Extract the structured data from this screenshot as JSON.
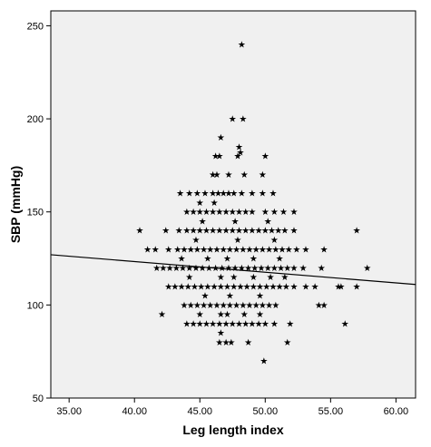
{
  "chart_data": {
    "type": "scatter",
    "title": "",
    "xlabel": "Leg length index",
    "ylabel": "SBP (mmHg)",
    "xlim": [
      33.6,
      61.5
    ],
    "ylim": [
      50,
      258
    ],
    "xticks": [
      35,
      40,
      45,
      50,
      55,
      60
    ],
    "xtick_labels": [
      "35.00",
      "40.00",
      "45.00",
      "50.00",
      "55.00",
      "60.00"
    ],
    "yticks": [
      50,
      100,
      150,
      200,
      250
    ],
    "ytick_labels": [
      "50",
      "100",
      "150",
      "200",
      "250"
    ],
    "grid": false,
    "background_color": "#f0f0f0",
    "marker": "★",
    "marker_color": "#000000",
    "fit_line": {
      "x": [
        33.6,
        61.5
      ],
      "y": [
        127,
        111
      ]
    },
    "series": [
      {
        "points": [
          [
            48.2,
            240
          ],
          [
            47.5,
            200
          ],
          [
            48.3,
            200
          ],
          [
            46.6,
            190
          ],
          [
            48.0,
            185
          ],
          [
            48.1,
            182
          ],
          [
            46.2,
            180
          ],
          [
            46.5,
            180
          ],
          [
            47.9,
            180
          ],
          [
            50.0,
            180
          ],
          [
            46.0,
            170
          ],
          [
            46.3,
            170
          ],
          [
            47.2,
            170
          ],
          [
            48.4,
            170
          ],
          [
            49.8,
            170
          ],
          [
            43.5,
            160
          ],
          [
            44.2,
            160
          ],
          [
            44.8,
            160
          ],
          [
            45.4,
            160
          ],
          [
            46.0,
            160
          ],
          [
            46.4,
            160
          ],
          [
            46.8,
            160
          ],
          [
            47.2,
            160
          ],
          [
            47.6,
            160
          ],
          [
            48.2,
            160
          ],
          [
            49.0,
            160
          ],
          [
            49.8,
            160
          ],
          [
            50.6,
            160
          ],
          [
            45.0,
            155
          ],
          [
            46.1,
            155
          ],
          [
            44.0,
            150
          ],
          [
            44.5,
            150
          ],
          [
            45.0,
            150
          ],
          [
            45.5,
            150
          ],
          [
            46.0,
            150
          ],
          [
            46.5,
            150
          ],
          [
            47.0,
            150
          ],
          [
            47.5,
            150
          ],
          [
            48.0,
            150
          ],
          [
            48.5,
            150
          ],
          [
            49.0,
            150
          ],
          [
            50.0,
            150
          ],
          [
            50.7,
            150
          ],
          [
            51.4,
            150
          ],
          [
            52.2,
            150
          ],
          [
            45.2,
            145
          ],
          [
            47.7,
            145
          ],
          [
            50.2,
            145
          ],
          [
            40.4,
            140
          ],
          [
            42.4,
            140
          ],
          [
            43.4,
            140
          ],
          [
            44.0,
            140
          ],
          [
            44.5,
            140
          ],
          [
            45.0,
            140
          ],
          [
            45.5,
            140
          ],
          [
            46.0,
            140
          ],
          [
            46.5,
            140
          ],
          [
            47.0,
            140
          ],
          [
            47.5,
            140
          ],
          [
            48.0,
            140
          ],
          [
            48.5,
            140
          ],
          [
            49.0,
            140
          ],
          [
            49.5,
            140
          ],
          [
            50.0,
            140
          ],
          [
            50.5,
            140
          ],
          [
            51.0,
            140
          ],
          [
            51.5,
            140
          ],
          [
            52.2,
            140
          ],
          [
            57.0,
            140
          ],
          [
            44.7,
            135
          ],
          [
            47.9,
            135
          ],
          [
            50.7,
            135
          ],
          [
            41.0,
            130
          ],
          [
            41.6,
            130
          ],
          [
            42.6,
            130
          ],
          [
            43.3,
            130
          ],
          [
            43.8,
            130
          ],
          [
            44.3,
            130
          ],
          [
            44.8,
            130
          ],
          [
            45.3,
            130
          ],
          [
            45.8,
            130
          ],
          [
            46.3,
            130
          ],
          [
            46.8,
            130
          ],
          [
            47.3,
            130
          ],
          [
            47.8,
            130
          ],
          [
            48.3,
            130
          ],
          [
            48.8,
            130
          ],
          [
            49.3,
            130
          ],
          [
            49.8,
            130
          ],
          [
            50.3,
            130
          ],
          [
            50.8,
            130
          ],
          [
            51.3,
            130
          ],
          [
            51.8,
            130
          ],
          [
            52.4,
            130
          ],
          [
            53.1,
            130
          ],
          [
            54.5,
            130
          ],
          [
            43.6,
            125
          ],
          [
            45.6,
            125
          ],
          [
            47.1,
            125
          ],
          [
            49.1,
            125
          ],
          [
            51.1,
            125
          ],
          [
            41.7,
            120
          ],
          [
            42.2,
            120
          ],
          [
            42.7,
            120
          ],
          [
            43.2,
            120
          ],
          [
            43.7,
            120
          ],
          [
            44.2,
            120
          ],
          [
            44.7,
            120
          ],
          [
            45.2,
            120
          ],
          [
            45.7,
            120
          ],
          [
            46.2,
            120
          ],
          [
            46.7,
            120
          ],
          [
            47.2,
            120
          ],
          [
            47.7,
            120
          ],
          [
            48.2,
            120
          ],
          [
            48.7,
            120
          ],
          [
            49.2,
            120
          ],
          [
            49.7,
            120
          ],
          [
            50.2,
            120
          ],
          [
            50.7,
            120
          ],
          [
            51.2,
            120
          ],
          [
            51.7,
            120
          ],
          [
            52.2,
            120
          ],
          [
            52.9,
            120
          ],
          [
            54.3,
            120
          ],
          [
            57.8,
            120
          ],
          [
            44.2,
            115
          ],
          [
            46.6,
            115
          ],
          [
            47.6,
            115
          ],
          [
            49.1,
            115
          ],
          [
            50.4,
            115
          ],
          [
            51.5,
            115
          ],
          [
            42.6,
            110
          ],
          [
            43.1,
            110
          ],
          [
            43.6,
            110
          ],
          [
            44.1,
            110
          ],
          [
            44.6,
            110
          ],
          [
            45.1,
            110
          ],
          [
            45.6,
            110
          ],
          [
            46.1,
            110
          ],
          [
            46.6,
            110
          ],
          [
            47.1,
            110
          ],
          [
            47.6,
            110
          ],
          [
            48.1,
            110
          ],
          [
            48.6,
            110
          ],
          [
            49.1,
            110
          ],
          [
            49.6,
            110
          ],
          [
            50.1,
            110
          ],
          [
            50.6,
            110
          ],
          [
            51.1,
            110
          ],
          [
            51.6,
            110
          ],
          [
            52.2,
            110
          ],
          [
            53.1,
            110
          ],
          [
            53.8,
            110
          ],
          [
            55.6,
            110
          ],
          [
            55.8,
            110
          ],
          [
            57.0,
            110
          ],
          [
            45.4,
            105
          ],
          [
            47.3,
            105
          ],
          [
            49.6,
            105
          ],
          [
            43.8,
            100
          ],
          [
            44.3,
            100
          ],
          [
            44.8,
            100
          ],
          [
            45.3,
            100
          ],
          [
            45.8,
            100
          ],
          [
            46.3,
            100
          ],
          [
            46.8,
            100
          ],
          [
            47.3,
            100
          ],
          [
            47.8,
            100
          ],
          [
            48.3,
            100
          ],
          [
            48.8,
            100
          ],
          [
            49.3,
            100
          ],
          [
            49.8,
            100
          ],
          [
            50.3,
            100
          ],
          [
            50.8,
            100
          ],
          [
            54.1,
            100
          ],
          [
            54.5,
            100
          ],
          [
            42.1,
            95
          ],
          [
            45.0,
            95
          ],
          [
            46.6,
            95
          ],
          [
            47.1,
            95
          ],
          [
            48.4,
            95
          ],
          [
            49.6,
            95
          ],
          [
            44.0,
            90
          ],
          [
            44.5,
            90
          ],
          [
            45.0,
            90
          ],
          [
            45.5,
            90
          ],
          [
            46.0,
            90
          ],
          [
            46.5,
            90
          ],
          [
            47.0,
            90
          ],
          [
            47.5,
            90
          ],
          [
            48.0,
            90
          ],
          [
            48.5,
            90
          ],
          [
            49.0,
            90
          ],
          [
            49.5,
            90
          ],
          [
            50.0,
            90
          ],
          [
            50.7,
            90
          ],
          [
            51.9,
            90
          ],
          [
            56.1,
            90
          ],
          [
            46.6,
            85
          ],
          [
            46.5,
            80
          ],
          [
            47.0,
            80
          ],
          [
            47.4,
            80
          ],
          [
            48.7,
            80
          ],
          [
            51.7,
            80
          ],
          [
            49.9,
            70
          ]
        ]
      }
    ]
  }
}
